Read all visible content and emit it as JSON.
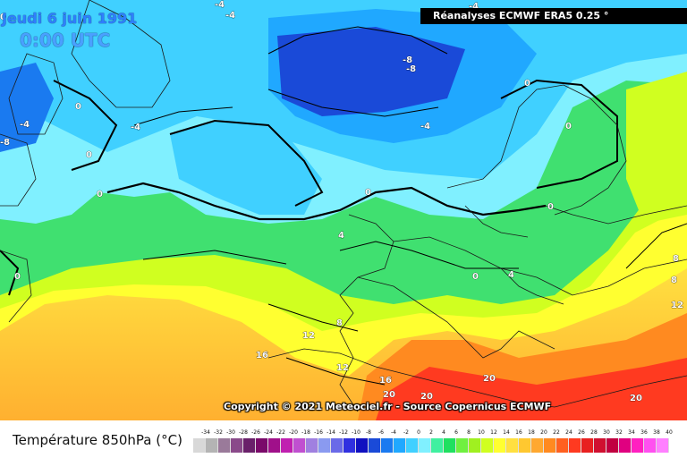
{
  "map": {
    "date_title": "Jeudi 6 juin 1991",
    "time_title": "0:00 UTC",
    "source_banner": "Réanalyses ECMWF ERA5 0.25 °",
    "copyright": "Copyright © 2021 Meteociel.fr - Source Copernicus ECMWF",
    "contour_labels": [
      "-4",
      "-4",
      "-4",
      "-8",
      "-8",
      "-8",
      "-4",
      "-4",
      "0",
      "0",
      "0",
      "0",
      "0",
      "0",
      "0",
      "0",
      "0",
      "-4",
      "4",
      "4",
      "8",
      "8",
      "8",
      "12",
      "12",
      "12",
      "16",
      "16",
      "20",
      "20",
      "20",
      "20",
      "0"
    ]
  },
  "legend": {
    "label": "Température 850hPa (°C)",
    "ticks": [
      "-34",
      "-32",
      "-30",
      "-28",
      "-26",
      "-24",
      "-22",
      "-20",
      "-18",
      "-16",
      "-14",
      "-12",
      "-10",
      "-8",
      "-6",
      "-4",
      "-2",
      "0",
      "2",
      "4",
      "6",
      "8",
      "10",
      "12",
      "14",
      "16",
      "18",
      "20",
      "22",
      "24",
      "26",
      "28",
      "30",
      "32",
      "34",
      "36",
      "38",
      "40"
    ],
    "colors": [
      "#d8d8d8",
      "#b4b4b4",
      "#9a7a9a",
      "#8a4a8a",
      "#6a206a",
      "#7a0a6a",
      "#a0108a",
      "#c020b0",
      "#c050d0",
      "#a080e0",
      "#8a9af0",
      "#6a6ae8",
      "#3030e0",
      "#1010c0",
      "#1a4ad8",
      "#1a7af0",
      "#20a8ff",
      "#40d0ff",
      "#80f0ff",
      "#40f0a0",
      "#20e060",
      "#70f040",
      "#a0f020",
      "#d0ff20",
      "#ffff30",
      "#ffe040",
      "#ffc830",
      "#ffa830",
      "#ff8a20",
      "#ff6020",
      "#ff3a20",
      "#e82020",
      "#d01030",
      "#c00040",
      "#e00080",
      "#ff20c0",
      "#ff50f0",
      "#ff80ff"
    ]
  }
}
